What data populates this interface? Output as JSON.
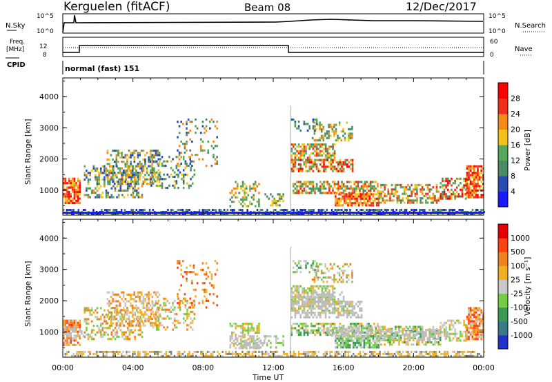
{
  "header": {
    "station": "Kerguelen (fitACF)",
    "beam": "Beam 08",
    "date": "12/Dec/2017"
  },
  "strip_labels": {
    "nsky": "N.Sky",
    "nsky_ticks": [
      "10^5",
      "10^0"
    ],
    "nsearch": "N.Search",
    "nsearch_ticks": [
      "10^5",
      "10^0"
    ],
    "freq_line1": "Freq.",
    "freq_line2": "[MHz]",
    "freq_ticks": [
      "12",
      "8"
    ],
    "nave": "Nave",
    "nave_ticks": [
      "60",
      "0"
    ],
    "cpid": "CPID",
    "cpid_text": "normal (fast) 151"
  },
  "chart_data": [
    {
      "type": "heatmap",
      "title": "",
      "ylabel": "Slant Range [km]",
      "xlabel": "",
      "yticks": [
        "4000",
        "3000",
        "2000",
        "1000"
      ],
      "ylim": [
        200,
        4600
      ],
      "xlim": [
        0,
        24
      ],
      "colorbar": {
        "label": "Power [dB]",
        "ticks": [
          "28",
          "24",
          "20",
          "16",
          "12",
          "8",
          "4"
        ],
        "colors": [
          "#1a1aff",
          "#2a4db3",
          "#4d8a66",
          "#55a85a",
          "#f2c21a",
          "#f58a1a",
          "#f0301a",
          "#ff0000"
        ]
      }
    },
    {
      "type": "heatmap",
      "title": "",
      "ylabel": "Slant Range [km]",
      "xlabel": "Time UT",
      "xticks": [
        "00:00",
        "04:00",
        "08:00",
        "12:00",
        "16:00",
        "20:00",
        "00:00"
      ],
      "yticks": [
        "4000",
        "3000",
        "2000",
        "1000"
      ],
      "ylim": [
        200,
        4600
      ],
      "xlim": [
        0,
        24
      ],
      "colorbar": {
        "label": "Velocity [m s⁻¹]",
        "ticks": [
          "1000",
          "500",
          "100",
          "25",
          "-25",
          "-100",
          "-500",
          "-1000"
        ],
        "colors": [
          "#2233cc",
          "#3a7a8a",
          "#3a9a55",
          "#77cc44",
          "#c8c8c8",
          "#f0b020",
          "#f08020",
          "#ff4010",
          "#e60000"
        ]
      }
    }
  ],
  "colors": {
    "ground_scatter": "#808080",
    "power_low": "#2a4db3",
    "power_mid": "#55a85a",
    "power_high": "#f0301a"
  }
}
